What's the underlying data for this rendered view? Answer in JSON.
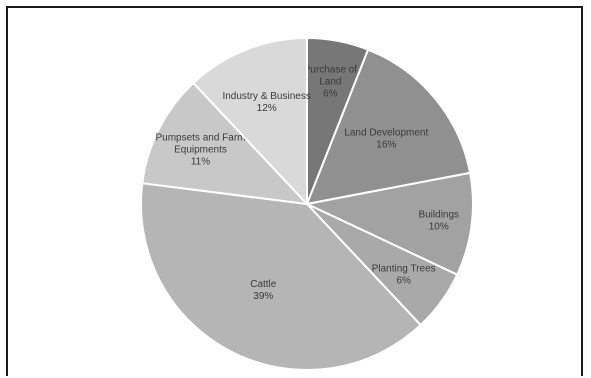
{
  "chart_data": {
    "type": "pie",
    "slices": [
      {
        "label": [
          "Purchase of",
          "Land"
        ],
        "value": 6,
        "value_label": "6%",
        "color": "#777777"
      },
      {
        "label": [
          "Land Development"
        ],
        "value": 16,
        "value_label": "16%",
        "color": "#909090"
      },
      {
        "label": [
          "Buildings"
        ],
        "value": 10,
        "value_label": "10%",
        "color": "#a2a2a2"
      },
      {
        "label": [
          "Planting Trees"
        ],
        "value": 6,
        "value_label": "6%",
        "color": "#a9a9a9"
      },
      {
        "label": [
          "Cattle"
        ],
        "value": 39,
        "value_label": "39%",
        "color": "#b5b5b5"
      },
      {
        "label": [
          "Pumpsets and Farm",
          "Equipments"
        ],
        "value": 11,
        "value_label": "11%",
        "color": "#c8c8c8"
      },
      {
        "label": [
          "Industry & Business"
        ],
        "value": 12,
        "value_label": "12%",
        "color": "#d9d9d9"
      }
    ],
    "start_angle": "top",
    "direction": "clockwise",
    "legend": "none"
  }
}
